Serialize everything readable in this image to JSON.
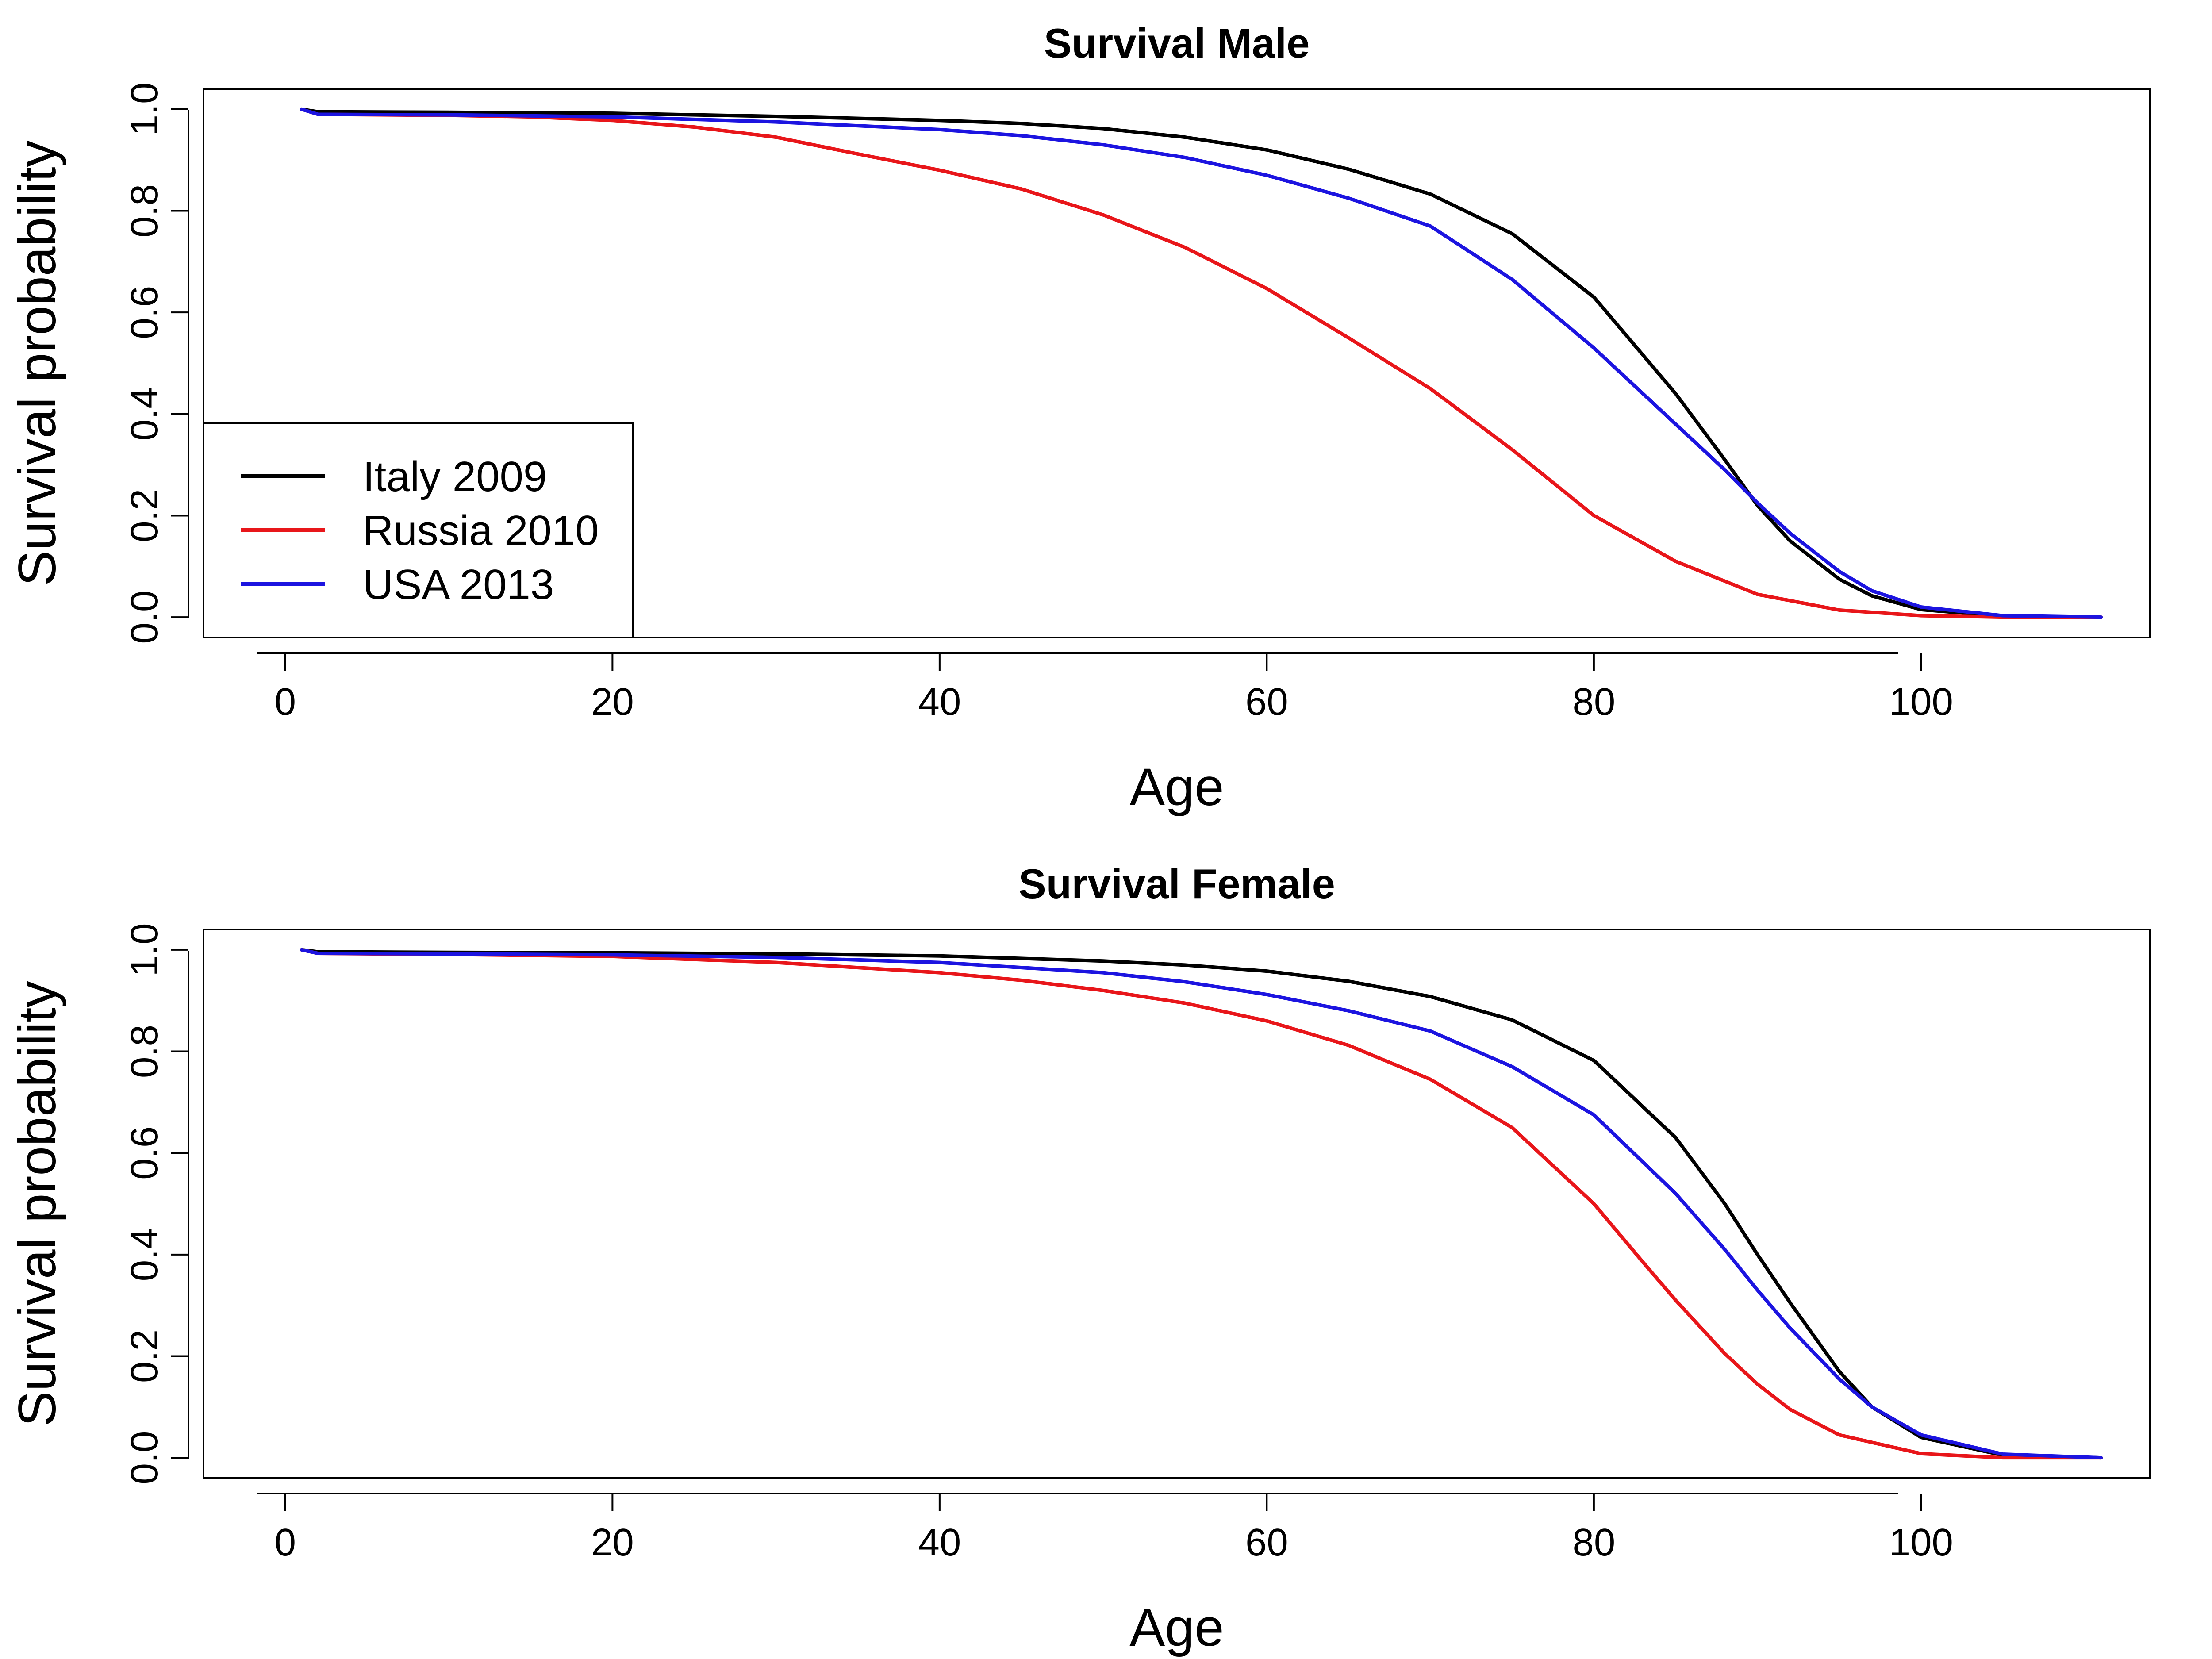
{
  "chart_data": [
    {
      "type": "line",
      "title": "Survival Male",
      "xlabel": "Age",
      "ylabel": "Survival probability",
      "xlim": [
        -5,
        114
      ],
      "ylim": [
        -0.04,
        1.04
      ],
      "x_ticks": [
        0,
        20,
        40,
        60,
        80,
        100
      ],
      "x_tick_labels": [
        "0",
        "20",
        "40",
        "60",
        "80",
        "100"
      ],
      "y_ticks": [
        0.0,
        0.2,
        0.4,
        0.6,
        0.8,
        1.0
      ],
      "y_tick_labels": [
        "0.0",
        "0.2",
        "0.4",
        "0.6",
        "0.8",
        "1.0"
      ],
      "grid": false,
      "legend": {
        "placement": "bottom-left",
        "entries": [
          {
            "label": "Italy 2009",
            "color": "#000000"
          },
          {
            "label": "Russia 2010",
            "color": "#e8161a"
          },
          {
            "label": "USA 2013",
            "color": "#1c14e0"
          }
        ]
      },
      "series": [
        {
          "name": "Italy 2009",
          "color": "#000000",
          "x": [
            1,
            2,
            10,
            20,
            30,
            40,
            45,
            50,
            55,
            60,
            65,
            70,
            75,
            80,
            85,
            88,
            90,
            92,
            95,
            97,
            100,
            105,
            111
          ],
          "y": [
            1.0,
            0.995,
            0.994,
            0.992,
            0.986,
            0.978,
            0.972,
            0.962,
            0.945,
            0.92,
            0.882,
            0.833,
            0.755,
            0.63,
            0.44,
            0.31,
            0.22,
            0.15,
            0.075,
            0.042,
            0.015,
            0.002,
            0.0
          ]
        },
        {
          "name": "Russia 2010",
          "color": "#e8161a",
          "x": [
            1,
            2,
            10,
            15,
            20,
            25,
            30,
            35,
            40,
            45,
            50,
            55,
            60,
            65,
            70,
            75,
            80,
            85,
            90,
            95,
            100,
            105,
            111
          ],
          "y": [
            1.0,
            0.99,
            0.988,
            0.985,
            0.978,
            0.965,
            0.945,
            0.912,
            0.88,
            0.843,
            0.792,
            0.728,
            0.647,
            0.55,
            0.45,
            0.33,
            0.2,
            0.11,
            0.045,
            0.014,
            0.003,
            0.0,
            0.0
          ]
        },
        {
          "name": "USA 2013",
          "color": "#1c14e0",
          "x": [
            1,
            2,
            10,
            20,
            30,
            40,
            45,
            50,
            55,
            60,
            65,
            70,
            75,
            80,
            85,
            88,
            90,
            92,
            95,
            97,
            100,
            105,
            111
          ],
          "y": [
            1.0,
            0.99,
            0.989,
            0.985,
            0.975,
            0.96,
            0.948,
            0.93,
            0.905,
            0.87,
            0.825,
            0.77,
            0.665,
            0.53,
            0.38,
            0.29,
            0.225,
            0.165,
            0.09,
            0.052,
            0.02,
            0.003,
            0.0
          ]
        }
      ]
    },
    {
      "type": "line",
      "title": "Survival Female",
      "xlabel": "Age",
      "ylabel": "Survival probability",
      "xlim": [
        -5,
        114
      ],
      "ylim": [
        -0.04,
        1.04
      ],
      "x_ticks": [
        0,
        20,
        40,
        60,
        80,
        100
      ],
      "x_tick_labels": [
        "0",
        "20",
        "40",
        "60",
        "80",
        "100"
      ],
      "y_ticks": [
        0.0,
        0.2,
        0.4,
        0.6,
        0.8,
        1.0
      ],
      "y_tick_labels": [
        "0.0",
        "0.2",
        "0.4",
        "0.6",
        "0.8",
        "1.0"
      ],
      "grid": false,
      "series": [
        {
          "name": "Italy 2009",
          "color": "#000000",
          "x": [
            1,
            2,
            10,
            20,
            30,
            40,
            50,
            55,
            60,
            65,
            70,
            75,
            80,
            85,
            88,
            90,
            92,
            95,
            97,
            100,
            105,
            111
          ],
          "y": [
            1.0,
            0.996,
            0.995,
            0.994,
            0.992,
            0.988,
            0.978,
            0.97,
            0.958,
            0.938,
            0.908,
            0.862,
            0.782,
            0.63,
            0.5,
            0.4,
            0.305,
            0.17,
            0.1,
            0.04,
            0.005,
            0.0
          ]
        },
        {
          "name": "Russia 2010",
          "color": "#e8161a",
          "x": [
            1,
            2,
            10,
            20,
            30,
            40,
            45,
            50,
            55,
            60,
            65,
            70,
            75,
            80,
            83,
            85,
            88,
            90,
            92,
            95,
            100,
            105,
            111
          ],
          "y": [
            1.0,
            0.993,
            0.991,
            0.987,
            0.975,
            0.955,
            0.94,
            0.92,
            0.895,
            0.86,
            0.812,
            0.745,
            0.65,
            0.5,
            0.385,
            0.31,
            0.205,
            0.145,
            0.095,
            0.045,
            0.008,
            0.0,
            0.0
          ]
        },
        {
          "name": "USA 2013",
          "color": "#1c14e0",
          "x": [
            1,
            2,
            10,
            20,
            30,
            40,
            50,
            55,
            60,
            65,
            70,
            75,
            80,
            85,
            88,
            90,
            92,
            95,
            97,
            100,
            105,
            111
          ],
          "y": [
            1.0,
            0.993,
            0.992,
            0.99,
            0.985,
            0.975,
            0.955,
            0.937,
            0.912,
            0.88,
            0.84,
            0.77,
            0.675,
            0.52,
            0.41,
            0.33,
            0.255,
            0.155,
            0.1,
            0.045,
            0.007,
            0.0
          ]
        }
      ]
    }
  ]
}
